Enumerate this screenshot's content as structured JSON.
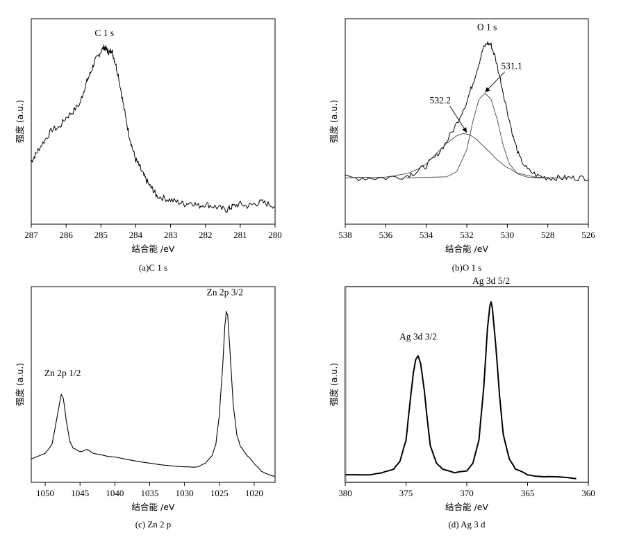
{
  "chart_data": [
    {
      "type": "line",
      "caption": "(a)C 1 s",
      "xlabel": "结合能 /eV",
      "ylabel": "强度 (a.u.)",
      "xlim": [
        287,
        280
      ],
      "xticks": [
        287,
        286,
        285,
        284,
        283,
        282,
        281,
        280
      ],
      "ylim": [
        0,
        100
      ],
      "series": [
        {
          "name": "C 1s spectrum",
          "x": [
            287,
            286.9,
            286.8,
            286.6,
            286.4,
            286.2,
            286.0,
            285.8,
            285.6,
            285.5,
            285.4,
            285.3,
            285.2,
            285.1,
            285.0,
            284.9,
            284.85,
            284.8,
            284.75,
            284.7,
            284.65,
            284.6,
            284.5,
            284.4,
            284.3,
            284.2,
            284.1,
            284.0,
            283.9,
            283.8,
            283.7,
            283.6,
            283.5,
            283.4,
            283.2,
            283.0,
            282.8,
            282.6,
            282.4,
            282.2,
            282.0,
            281.8,
            281.6,
            281.4,
            281.3,
            281.2,
            281.0,
            280.8,
            280.6,
            280.4,
            280.2,
            280.0
          ],
          "y": [
            31,
            34,
            37,
            42,
            47,
            48,
            53,
            56,
            60,
            66,
            71,
            75,
            80,
            83,
            86,
            88,
            87,
            86,
            85,
            87,
            84,
            81,
            74,
            64,
            54,
            45,
            38,
            32,
            29,
            25,
            22,
            19,
            17,
            14,
            13,
            12,
            11,
            10,
            11,
            9,
            10,
            9,
            8,
            7,
            8,
            9,
            10,
            9,
            10,
            11,
            10,
            9
          ]
        }
      ],
      "annotations": [
        {
          "text": "C 1 s",
          "x": 284.9,
          "y": 92
        }
      ]
    },
    {
      "type": "line",
      "caption": "(b)O 1 s",
      "xlabel": "结合能 /eV",
      "ylabel": "强度 (a.u.)",
      "xlim": [
        538,
        526
      ],
      "xticks": [
        538,
        536,
        534,
        532,
        530,
        528,
        526
      ],
      "ylim": [
        0,
        100
      ],
      "series": [
        {
          "name": "O 1s spectrum",
          "x": [
            538,
            537,
            536,
            535,
            534.5,
            534,
            533.5,
            533,
            532.5,
            532,
            531.7,
            531.4,
            531.2,
            531.0,
            530.8,
            530.6,
            530.3,
            530.0,
            529.7,
            529.4,
            529.0,
            528.5,
            528.0,
            527.5,
            527.0,
            526.5,
            526.0
          ],
          "y": [
            23,
            23,
            23,
            24,
            26,
            29,
            34,
            41,
            50,
            61,
            70,
            80,
            87,
            90,
            89,
            83,
            70,
            56,
            43,
            33,
            27,
            24,
            23,
            23,
            23,
            23,
            23
          ]
        },
        {
          "name": "fit 532.2 eV",
          "x": [
            538,
            536,
            535,
            534.5,
            534,
            533.5,
            533,
            532.5,
            532.2,
            531.9,
            531.5,
            531,
            530.5,
            530,
            529.5,
            529,
            528.5,
            528,
            527
          ],
          "y": [
            23,
            23.5,
            25,
            27,
            30,
            35,
            40,
            44,
            45,
            44.5,
            42,
            37,
            32,
            28,
            25.5,
            24,
            23.3,
            23,
            23
          ]
        },
        {
          "name": "fit 531.1 eV",
          "x": [
            535,
            533,
            532.5,
            532,
            531.7,
            531.4,
            531.1,
            530.8,
            530.5,
            530.2,
            529.9,
            529.5,
            529,
            528.5,
            528
          ],
          "y": [
            23,
            23.5,
            26,
            37,
            51,
            62,
            65,
            62,
            52,
            39,
            30,
            25,
            23.3,
            23,
            23
          ]
        }
      ],
      "annotations": [
        {
          "text": "O 1 s",
          "x": 531.0,
          "y": 95
        },
        {
          "text": "532.2",
          "x": 532.9,
          "y": 60
        },
        {
          "text": "531.1",
          "x": 530.2,
          "y": 77
        }
      ]
    },
    {
      "type": "line",
      "caption": "(c) Zn 2 p",
      "xlabel": "结合能 /eV",
      "ylabel": "强度 (a.u.)",
      "xlim": [
        1052,
        1017
      ],
      "xticks": [
        1050,
        1045,
        1040,
        1035,
        1030,
        1025,
        1020
      ],
      "ylim": [
        0,
        100
      ],
      "series": [
        {
          "name": "Zn 2p spectrum",
          "x": [
            1052,
            1050,
            1049,
            1048.5,
            1048,
            1047.7,
            1047.4,
            1047,
            1046.5,
            1046,
            1045,
            1044,
            1043,
            1040,
            1035,
            1030,
            1028,
            1027,
            1026,
            1025.5,
            1025,
            1024.5,
            1024.2,
            1024,
            1023.8,
            1023.5,
            1023,
            1022.5,
            1022,
            1021,
            1020,
            1019,
            1018,
            1017
          ],
          "y": [
            12,
            15,
            20,
            30,
            40,
            46,
            44,
            33,
            22,
            18,
            16,
            17,
            15,
            13,
            10,
            8,
            8,
            10,
            14,
            20,
            35,
            62,
            82,
            89,
            87,
            70,
            40,
            25,
            19,
            14,
            10,
            6,
            4,
            3
          ]
        }
      ],
      "annotations": [
        {
          "text": "Zn 2p 3/2",
          "x": 1024.2,
          "y": 96
        },
        {
          "text": "Zn 2p 1/2",
          "x": 1047.5,
          "y": 54
        }
      ]
    },
    {
      "type": "line",
      "caption": "(d) Ag 3 d",
      "xlabel": "结合能 /eV",
      "ylabel": "强度 (a.u.)",
      "xlim": [
        380,
        360
      ],
      "xticks": [
        380,
        375,
        370,
        365,
        360
      ],
      "ylim": [
        0,
        100
      ],
      "series": [
        {
          "name": "Ag 3d spectrum",
          "x": [
            380,
            378,
            377,
            376,
            375.5,
            375,
            374.7,
            374.4,
            374.2,
            374.0,
            373.8,
            373.5,
            373.2,
            373,
            372.5,
            372,
            371,
            370,
            369.5,
            369,
            368.6,
            368.3,
            368.1,
            368.0,
            367.9,
            367.6,
            367.3,
            367,
            366.5,
            366,
            365,
            364,
            363,
            361
          ],
          "y": [
            4,
            4,
            5,
            7,
            11,
            22,
            40,
            57,
            64,
            66,
            62,
            48,
            30,
            19,
            10,
            7,
            5,
            6,
            10,
            22,
            50,
            80,
            92,
            94,
            91,
            70,
            45,
            25,
            12,
            7,
            4,
            3,
            3,
            2
          ]
        }
      ],
      "annotations": [
        {
          "text": "Ag 3d 5/2",
          "x": 368.0,
          "y": 102
        },
        {
          "text": "Ag 3d 3/2",
          "x": 374.0,
          "y": 73
        }
      ]
    }
  ]
}
